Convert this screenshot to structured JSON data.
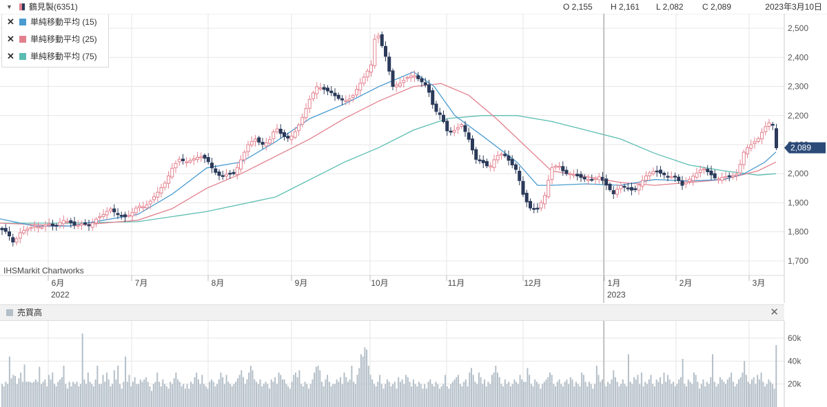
{
  "header": {
    "symbol_name": "鶴見製(6351)",
    "open": "O 2,155",
    "high": "H 2,161",
    "low": "L 2,082",
    "close": "C 2,089",
    "date": "2023年3月10日"
  },
  "legend": [
    {
      "label": "単純移動平均 (15)",
      "color": "#4a9bd0"
    },
    {
      "label": "単純移動平均 (25)",
      "color": "#e3808e"
    },
    {
      "label": "単純移動平均 (75)",
      "color": "#5bbdb1"
    }
  ],
  "attribution": "IHSMarkit Chartworks",
  "price_badge": "2,089",
  "volume_panel": {
    "title": "売買高"
  },
  "colors": {
    "up": "#e3808e",
    "down": "#2b3a5a",
    "volume": "#b4bfc8",
    "grid": "#e6e6e6",
    "badge": "#2b4a78"
  },
  "chart_data": [
    {
      "type": "candlestick",
      "title": "鶴見製(6351)",
      "ylim": [
        1650,
        2550
      ],
      "y_ticks": [
        "1,700",
        "1,800",
        "1,900",
        "2,000",
        "2,100",
        "2,200",
        "2,300",
        "2,400",
        "2,500"
      ],
      "x_ticks": [
        "6月",
        "7月",
        "8月",
        "9月",
        "10月",
        "11月",
        "12月",
        "1月",
        "2月",
        "3月"
      ],
      "x_sub_ticks": [
        "2022",
        "2023"
      ],
      "grid": true,
      "series": [
        {
          "name": "単純移動平均 (15)",
          "type": "line"
        },
        {
          "name": "単純移動平均 (25)",
          "type": "line"
        },
        {
          "name": "単純移動平均 (75)",
          "type": "line"
        }
      ],
      "last_close": 2089,
      "close_path": [
        [
          0,
          1810
        ],
        [
          10,
          1800
        ],
        [
          20,
          1760
        ],
        [
          30,
          1800
        ],
        [
          40,
          1810
        ],
        [
          50,
          1820
        ],
        [
          60,
          1815
        ],
        [
          70,
          1830
        ],
        [
          80,
          1815
        ],
        [
          90,
          1840
        ],
        [
          100,
          1835
        ],
        [
          110,
          1820
        ],
        [
          120,
          1830
        ],
        [
          130,
          1820
        ],
        [
          140,
          1845
        ],
        [
          150,
          1860
        ],
        [
          160,
          1880
        ],
        [
          170,
          1860
        ],
        [
          180,
          1850
        ],
        [
          190,
          1860
        ],
        [
          200,
          1890
        ],
        [
          210,
          1885
        ],
        [
          220,
          1910
        ],
        [
          230,
          1940
        ],
        [
          240,
          1970
        ],
        [
          250,
          2020
        ],
        [
          260,
          2050
        ],
        [
          270,
          2040
        ],
        [
          280,
          2050
        ],
        [
          290,
          2060
        ],
        [
          300,
          2050
        ],
        [
          310,
          2010
        ],
        [
          320,
          1990
        ],
        [
          330,
          2000
        ],
        [
          340,
          2000
        ],
        [
          350,
          2050
        ],
        [
          360,
          2100
        ],
        [
          370,
          2120
        ],
        [
          380,
          2100
        ],
        [
          390,
          2110
        ],
        [
          400,
          2160
        ],
        [
          410,
          2130
        ],
        [
          420,
          2120
        ],
        [
          430,
          2150
        ],
        [
          440,
          2200
        ],
        [
          450,
          2260
        ],
        [
          460,
          2300
        ],
        [
          470,
          2290
        ],
        [
          480,
          2280
        ],
        [
          490,
          2260
        ],
        [
          500,
          2250
        ],
        [
          510,
          2260
        ],
        [
          520,
          2300
        ],
        [
          530,
          2340
        ],
        [
          540,
          2380
        ],
        [
          545,
          2490
        ],
        [
          550,
          2470
        ],
        [
          560,
          2400
        ],
        [
          570,
          2300
        ],
        [
          580,
          2310
        ],
        [
          590,
          2330
        ],
        [
          600,
          2340
        ],
        [
          610,
          2320
        ],
        [
          620,
          2300
        ],
        [
          630,
          2220
        ],
        [
          640,
          2200
        ],
        [
          650,
          2140
        ],
        [
          660,
          2150
        ],
        [
          670,
          2170
        ],
        [
          680,
          2120
        ],
        [
          690,
          2050
        ],
        [
          700,
          2040
        ],
        [
          710,
          2020
        ],
        [
          720,
          2060
        ],
        [
          730,
          2070
        ],
        [
          740,
          2040
        ],
        [
          750,
          2010
        ],
        [
          760,
          1920
        ],
        [
          770,
          1880
        ],
        [
          780,
          1880
        ],
        [
          790,
          1920
        ],
        [
          800,
          2020
        ],
        [
          810,
          2030
        ],
        [
          820,
          2000
        ],
        [
          830,
          2000
        ],
        [
          840,
          1990
        ],
        [
          850,
          1980
        ],
        [
          860,
          1980
        ],
        [
          870,
          1990
        ],
        [
          880,
          1960
        ],
        [
          890,
          1930
        ],
        [
          900,
          1960
        ],
        [
          910,
          1950
        ],
        [
          920,
          1940
        ],
        [
          930,
          1970
        ],
        [
          940,
          2000
        ],
        [
          950,
          2010
        ],
        [
          960,
          2000
        ],
        [
          970,
          1990
        ],
        [
          980,
          1990
        ],
        [
          990,
          1960
        ],
        [
          1000,
          1980
        ],
        [
          1010,
          2000
        ],
        [
          1020,
          2020
        ],
        [
          1030,
          2000
        ],
        [
          1040,
          1980
        ],
        [
          1050,
          1990
        ],
        [
          1060,
          1990
        ],
        [
          1070,
          2000
        ],
        [
          1080,
          2080
        ],
        [
          1090,
          2100
        ],
        [
          1100,
          2120
        ],
        [
          1110,
          2160
        ],
        [
          1118,
          2180
        ],
        [
          1124,
          2155
        ],
        [
          1126,
          2089
        ]
      ],
      "ma15": [
        [
          0,
          1845
        ],
        [
          50,
          1820
        ],
        [
          100,
          1820
        ],
        [
          150,
          1840
        ],
        [
          200,
          1860
        ],
        [
          250,
          1930
        ],
        [
          300,
          2020
        ],
        [
          350,
          2040
        ],
        [
          400,
          2110
        ],
        [
          450,
          2190
        ],
        [
          500,
          2240
        ],
        [
          550,
          2300
        ],
        [
          600,
          2350
        ],
        [
          630,
          2300
        ],
        [
          660,
          2200
        ],
        [
          700,
          2130
        ],
        [
          750,
          2040
        ],
        [
          780,
          1960
        ],
        [
          800,
          1960
        ],
        [
          850,
          1965
        ],
        [
          900,
          1960
        ],
        [
          950,
          1980
        ],
        [
          1000,
          1975
        ],
        [
          1050,
          1980
        ],
        [
          1080,
          2000
        ],
        [
          1110,
          2040
        ],
        [
          1126,
          2075
        ]
      ],
      "ma25": [
        [
          0,
          1830
        ],
        [
          50,
          1825
        ],
        [
          100,
          1820
        ],
        [
          150,
          1830
        ],
        [
          200,
          1840
        ],
        [
          250,
          1880
        ],
        [
          300,
          1950
        ],
        [
          350,
          2000
        ],
        [
          400,
          2060
        ],
        [
          450,
          2120
        ],
        [
          500,
          2190
        ],
        [
          550,
          2250
        ],
        [
          600,
          2300
        ],
        [
          640,
          2310
        ],
        [
          680,
          2270
        ],
        [
          720,
          2190
        ],
        [
          760,
          2100
        ],
        [
          800,
          2010
        ],
        [
          850,
          1990
        ],
        [
          900,
          1970
        ],
        [
          950,
          1960
        ],
        [
          1000,
          1970
        ],
        [
          1050,
          1980
        ],
        [
          1100,
          2010
        ],
        [
          1126,
          2040
        ]
      ],
      "ma75": [
        [
          0,
          1830
        ],
        [
          100,
          1830
        ],
        [
          200,
          1835
        ],
        [
          300,
          1870
        ],
        [
          400,
          1920
        ],
        [
          500,
          2040
        ],
        [
          550,
          2090
        ],
        [
          600,
          2150
        ],
        [
          650,
          2190
        ],
        [
          700,
          2200
        ],
        [
          750,
          2200
        ],
        [
          800,
          2180
        ],
        [
          850,
          2150
        ],
        [
          900,
          2120
        ],
        [
          950,
          2070
        ],
        [
          1000,
          2030
        ],
        [
          1050,
          2010
        ],
        [
          1100,
          1995
        ],
        [
          1126,
          2000
        ]
      ]
    },
    {
      "type": "bar",
      "title": "売買高",
      "ylim": [
        0,
        75
      ],
      "y_ticks": [
        "20k",
        "40k",
        "60k"
      ],
      "units": "k",
      "values": [
        20,
        18,
        22,
        20,
        44,
        25,
        28,
        27,
        20,
        25,
        30,
        22,
        37,
        22,
        22,
        22,
        21,
        22,
        24,
        22,
        35,
        20,
        22,
        24,
        18,
        28,
        24,
        30,
        20,
        18,
        22,
        24,
        26,
        36,
        20,
        16,
        22,
        18,
        22,
        20,
        22,
        18,
        20,
        64,
        24,
        20,
        30,
        22,
        20,
        18,
        24,
        36,
        20,
        20,
        28,
        22,
        30,
        24,
        18,
        20,
        32,
        24,
        36,
        20,
        16,
        22,
        44,
        22,
        28,
        18,
        22,
        26,
        20,
        20,
        24,
        22,
        24,
        26,
        22,
        18,
        14,
        20,
        22,
        30,
        22,
        18,
        24,
        20,
        18,
        16,
        22,
        20,
        25,
        30,
        24,
        22,
        18,
        20,
        16,
        20,
        16,
        22,
        20,
        26,
        30,
        24,
        20,
        28,
        20,
        18,
        16,
        22,
        24,
        22,
        18,
        20,
        24,
        30,
        26,
        20,
        28,
        22,
        20,
        18,
        20,
        22,
        25,
        28,
        32,
        26,
        20,
        24,
        30,
        36,
        32,
        24,
        22,
        20,
        24,
        18,
        20,
        22,
        20,
        16,
        24,
        22,
        26,
        20,
        30,
        28,
        24,
        24,
        20,
        18,
        16,
        22,
        28,
        30,
        26,
        32,
        20,
        18,
        22,
        20,
        16,
        20,
        24,
        30,
        35,
        36,
        32,
        22,
        18,
        24,
        28,
        22,
        18,
        20,
        20,
        24,
        22,
        26,
        20,
        30,
        26,
        22,
        24,
        36,
        22,
        20,
        28,
        34,
        46,
        44,
        52,
        50,
        36,
        28,
        24,
        20,
        18,
        22,
        28,
        20,
        16,
        20,
        24,
        22,
        18,
        20,
        22,
        16,
        26,
        22,
        24,
        20,
        28,
        26,
        22,
        18,
        24,
        20,
        18,
        22,
        20,
        16,
        20,
        16,
        22,
        24,
        20,
        18,
        22,
        20,
        16,
        18,
        20,
        28,
        18,
        16,
        20,
        22,
        24,
        26,
        28,
        20,
        18,
        22,
        24,
        18,
        30,
        34,
        28,
        22,
        20,
        30,
        26,
        20,
        24,
        18,
        22,
        20,
        28,
        30,
        36,
        30,
        26,
        20,
        18,
        24,
        20,
        22,
        18,
        20,
        24,
        22,
        20,
        28,
        24,
        22,
        22,
        34,
        28,
        20,
        18,
        24,
        22,
        20,
        16,
        20,
        22,
        24,
        26,
        30,
        28,
        20,
        18,
        22,
        24,
        20,
        18,
        22,
        24,
        20,
        26,
        24,
        18,
        22,
        20,
        18,
        30,
        28,
        22,
        18,
        22,
        20,
        16,
        20,
        36,
        28,
        22,
        24,
        20,
        18,
        22,
        20,
        24,
        32,
        26,
        22,
        18,
        20,
        24,
        20,
        18,
        46,
        22,
        20,
        26,
        24,
        28,
        20,
        30,
        18,
        22,
        20,
        24,
        28,
        20,
        18,
        24,
        22,
        26,
        20,
        30,
        22,
        28,
        24,
        20,
        22,
        18,
        20,
        24,
        26,
        42,
        20,
        18,
        24,
        22,
        20,
        30,
        28,
        22,
        16,
        20,
        24,
        18,
        22,
        20,
        26,
        46,
        22,
        18,
        20,
        26,
        24,
        22,
        20,
        24,
        26,
        30,
        22,
        18,
        20,
        24,
        26,
        30,
        40,
        28,
        22,
        20,
        24,
        26,
        20,
        28,
        24,
        30,
        22,
        18,
        20,
        24,
        22,
        20,
        16,
        54
      ]
    }
  ]
}
